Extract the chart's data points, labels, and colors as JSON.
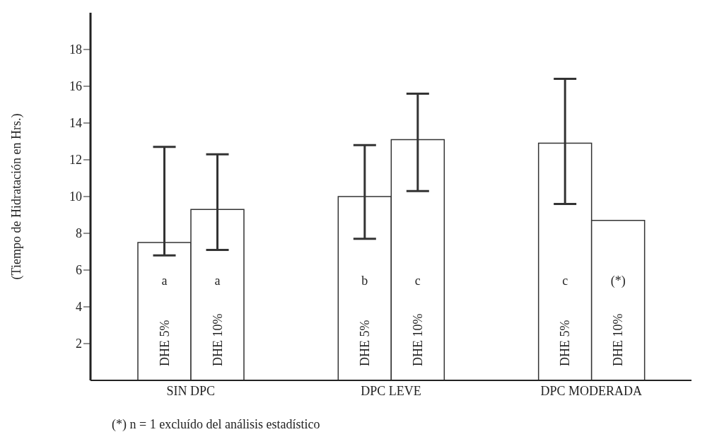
{
  "chart_data": {
    "type": "bar",
    "ylabel": "(Tiempo de Hidratación en Hrs.)",
    "categories": [
      "SIN  DPC",
      "DPC  LEVE",
      "DPC MODERADA"
    ],
    "series": [
      {
        "name": "DHE  5%",
        "color": "#ffffff",
        "values": [
          7.5,
          10.0,
          12.9
        ],
        "errors": [
          [
            6.8,
            12.7
          ],
          [
            7.7,
            12.8
          ],
          [
            9.6,
            16.4
          ]
        ],
        "value_labels": [
          "a",
          "b",
          "c"
        ]
      },
      {
        "name": "DHE  10%",
        "color": "#ffffff",
        "values": [
          9.3,
          13.1,
          8.7
        ],
        "errors": [
          [
            7.1,
            12.3
          ],
          [
            10.3,
            15.6
          ],
          null
        ],
        "value_labels": [
          "a",
          "c",
          "(*)"
        ]
      }
    ],
    "ylim": [
      0,
      20
    ],
    "yticks": [
      2,
      4,
      6,
      8,
      10,
      12,
      14,
      16,
      18
    ],
    "grid": false,
    "legend": false,
    "annotations": [
      "(*) n = 1 excluído del análisis estadístico"
    ]
  }
}
